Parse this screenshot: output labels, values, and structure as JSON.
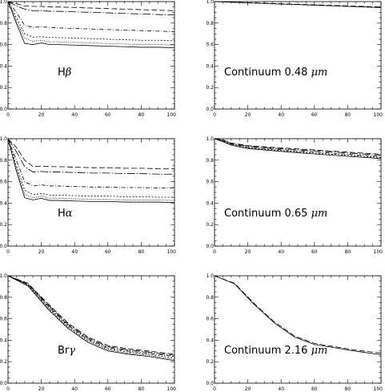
{
  "chart_data": [
    {
      "type": "line",
      "panel": "top-left",
      "label": "Hβ",
      "label_main": "H",
      "label_greek": "β",
      "x": [
        0,
        5,
        10,
        15,
        20,
        25,
        30,
        40,
        50,
        60,
        70,
        80,
        90,
        100
      ],
      "xlim": [
        0,
        100
      ],
      "ylim": [
        0.0,
        1.0
      ],
      "xticks": [
        "0",
        "20",
        "40",
        "60",
        "80",
        "100"
      ],
      "yticks": [
        "0.0",
        "0.2",
        "0.4",
        "0.6",
        "0.8",
        "1.0"
      ],
      "series": [
        {
          "dash": "7,3",
          "values": [
            1.0,
            0.98,
            0.96,
            0.955,
            0.955,
            0.95,
            0.95,
            0.945,
            0.94,
            0.935,
            0.93,
            0.925,
            0.92,
            0.915
          ]
        },
        {
          "dash": "10,2,1.5,2",
          "values": [
            1.0,
            0.96,
            0.93,
            0.915,
            0.915,
            0.91,
            0.91,
            0.905,
            0.9,
            0.895,
            0.89,
            0.885,
            0.88,
            0.875
          ]
        },
        {
          "dash": "5,2,1,2",
          "values": [
            1.0,
            0.9,
            0.78,
            0.76,
            0.765,
            0.76,
            0.755,
            0.75,
            0.745,
            0.74,
            0.735,
            0.73,
            0.725,
            0.72
          ]
        },
        {
          "dash": "2,2",
          "values": [
            1.0,
            0.85,
            0.7,
            0.67,
            0.675,
            0.665,
            0.665,
            0.66,
            0.655,
            0.65,
            0.645,
            0.64,
            0.64,
            0.635
          ]
        },
        {
          "dash": "1,1.5",
          "values": [
            1.0,
            0.82,
            0.66,
            0.63,
            0.64,
            0.625,
            0.625,
            0.62,
            0.615,
            0.61,
            0.605,
            0.6,
            0.6,
            0.595
          ]
        },
        {
          "dash": "",
          "values": [
            1.0,
            0.8,
            0.61,
            0.6,
            0.615,
            0.6,
            0.6,
            0.595,
            0.59,
            0.585,
            0.58,
            0.575,
            0.575,
            0.57
          ]
        }
      ]
    },
    {
      "type": "line",
      "panel": "top-right",
      "label": "Continuum 0.48 μm",
      "label_main": "Continuum 0.48 ",
      "label_greek": "μm",
      "x": [
        0,
        10,
        20,
        30,
        40,
        50,
        60,
        70,
        80,
        90,
        100
      ],
      "xlim": [
        0,
        100
      ],
      "ylim": [
        0.0,
        1.0
      ],
      "xticks": [
        "0",
        "20",
        "40",
        "60",
        "80",
        "100"
      ],
      "yticks": [
        "0.0",
        "0.2",
        "0.4",
        "0.6",
        "0.8",
        "1.0"
      ],
      "series": [
        {
          "dash": "7,3",
          "values": [
            1.0,
            0.995,
            0.99,
            0.985,
            0.98,
            0.975,
            0.97,
            0.965,
            0.96,
            0.955,
            0.95
          ]
        },
        {
          "dash": "",
          "values": [
            1.0,
            0.994,
            0.988,
            0.982,
            0.977,
            0.972,
            0.967,
            0.961,
            0.955,
            0.95,
            0.944
          ]
        }
      ]
    },
    {
      "type": "line",
      "panel": "middle-left",
      "label": "Hα",
      "label_main": "H",
      "label_greek": "α",
      "x": [
        0,
        5,
        10,
        15,
        20,
        25,
        30,
        40,
        50,
        60,
        70,
        80,
        90,
        100
      ],
      "xlim": [
        0,
        100
      ],
      "ylim": [
        0.0,
        1.0
      ],
      "xticks": [
        "0",
        "20",
        "40",
        "60",
        "80",
        "100"
      ],
      "yticks": [
        "0.0",
        "0.2",
        "0.4",
        "0.6",
        "0.8",
        "1.0"
      ],
      "series": [
        {
          "dash": "7,3",
          "values": [
            1.0,
            0.92,
            0.8,
            0.74,
            0.745,
            0.74,
            0.74,
            0.735,
            0.73,
            0.73,
            0.725,
            0.725,
            0.72,
            0.72
          ]
        },
        {
          "dash": "10,2,1.5,2",
          "values": [
            1.0,
            0.88,
            0.74,
            0.69,
            0.695,
            0.69,
            0.69,
            0.685,
            0.68,
            0.68,
            0.675,
            0.675,
            0.67,
            0.67
          ]
        },
        {
          "dash": "5,2,1,2",
          "values": [
            1.0,
            0.8,
            0.6,
            0.56,
            0.57,
            0.56,
            0.56,
            0.555,
            0.55,
            0.55,
            0.545,
            0.545,
            0.54,
            0.54
          ]
        },
        {
          "dash": "2,2",
          "values": [
            1.0,
            0.75,
            0.52,
            0.48,
            0.49,
            0.475,
            0.475,
            0.47,
            0.465,
            0.465,
            0.46,
            0.46,
            0.455,
            0.455
          ]
        },
        {
          "dash": "1,1.5",
          "values": [
            1.0,
            0.72,
            0.48,
            0.45,
            0.465,
            0.445,
            0.445,
            0.44,
            0.435,
            0.435,
            0.43,
            0.43,
            0.43,
            0.425
          ]
        },
        {
          "dash": "",
          "values": [
            1.0,
            0.7,
            0.45,
            0.43,
            0.445,
            0.425,
            0.425,
            0.42,
            0.415,
            0.415,
            0.41,
            0.41,
            0.41,
            0.405
          ]
        }
      ]
    },
    {
      "type": "line",
      "panel": "middle-right",
      "label": "Continuum 0.65 μm",
      "label_main": "Continuum 0.65 ",
      "label_greek": "μm",
      "x": [
        0,
        5,
        10,
        20,
        30,
        40,
        50,
        60,
        70,
        80,
        90,
        100
      ],
      "xlim": [
        0,
        100
      ],
      "ylim": [
        0.0,
        1.0
      ],
      "xticks": [
        "0",
        "20",
        "40",
        "60",
        "80",
        "100"
      ],
      "yticks": [
        "0.0",
        "0.2",
        "0.4",
        "0.6",
        "0.8",
        "1.0"
      ],
      "series": [
        {
          "dash": "7,3",
          "values": [
            1.0,
            0.99,
            0.96,
            0.935,
            0.925,
            0.915,
            0.905,
            0.895,
            0.885,
            0.875,
            0.865,
            0.855
          ]
        },
        {
          "dash": "10,2,1.5,2",
          "values": [
            1.0,
            0.985,
            0.955,
            0.93,
            0.918,
            0.907,
            0.897,
            0.887,
            0.877,
            0.867,
            0.857,
            0.847
          ]
        },
        {
          "dash": "5,2,1,2",
          "values": [
            1.0,
            0.98,
            0.95,
            0.922,
            0.91,
            0.898,
            0.887,
            0.876,
            0.866,
            0.855,
            0.845,
            0.835
          ]
        },
        {
          "dash": "2,2",
          "values": [
            1.0,
            0.975,
            0.945,
            0.915,
            0.902,
            0.89,
            0.878,
            0.867,
            0.856,
            0.845,
            0.835,
            0.825
          ]
        },
        {
          "dash": "",
          "values": [
            1.0,
            0.972,
            0.94,
            0.908,
            0.895,
            0.882,
            0.87,
            0.858,
            0.847,
            0.836,
            0.826,
            0.815
          ]
        }
      ]
    },
    {
      "type": "line",
      "panel": "bottom-left",
      "label": "Brγ",
      "label_main": "Br",
      "label_greek": "γ",
      "x": [
        0,
        12,
        24,
        36,
        48,
        60,
        72,
        84,
        100
      ],
      "xlim": [
        0,
        100
      ],
      "ylim": [
        0.0,
        1.0
      ],
      "xticks": [
        "0",
        "20",
        "40",
        "60",
        "80",
        "100"
      ],
      "yticks": [
        "0.0",
        "0.2",
        "0.4",
        "0.6",
        "0.8",
        "1.0"
      ],
      "series": [
        {
          "dash": "7,3",
          "values": [
            1.0,
            0.93,
            0.74,
            0.56,
            0.43,
            0.35,
            0.32,
            0.3,
            0.27
          ]
        },
        {
          "dash": "10,2,1.5,2",
          "values": [
            1.0,
            0.925,
            0.73,
            0.55,
            0.42,
            0.34,
            0.31,
            0.29,
            0.26
          ]
        },
        {
          "dash": "5,2,1,2",
          "values": [
            1.0,
            0.92,
            0.72,
            0.54,
            0.41,
            0.33,
            0.3,
            0.28,
            0.25
          ]
        },
        {
          "dash": "2,2",
          "values": [
            1.0,
            0.915,
            0.71,
            0.53,
            0.4,
            0.32,
            0.29,
            0.27,
            0.235
          ]
        },
        {
          "dash": "1,1.5",
          "values": [
            1.0,
            0.91,
            0.7,
            0.52,
            0.39,
            0.31,
            0.28,
            0.26,
            0.22
          ]
        },
        {
          "dash": "",
          "values": [
            1.0,
            0.905,
            0.69,
            0.51,
            0.38,
            0.3,
            0.27,
            0.25,
            0.21
          ]
        }
      ]
    },
    {
      "type": "line",
      "panel": "bottom-right",
      "label": "Continuum 2.16 μm",
      "label_main": "Continuum 2.16 ",
      "label_greek": "μm",
      "x": [
        0,
        12,
        24,
        36,
        48,
        60,
        72,
        84,
        100
      ],
      "xlim": [
        0,
        100
      ],
      "ylim": [
        0.0,
        1.0
      ],
      "xticks": [
        "0",
        "20",
        "40",
        "60",
        "80",
        "100"
      ],
      "yticks": [
        "0.0",
        "0.2",
        "0.4",
        "0.6",
        "0.8",
        "1.0"
      ],
      "series": [
        {
          "dash": "7,3",
          "values": [
            1.0,
            0.93,
            0.74,
            0.57,
            0.44,
            0.37,
            0.34,
            0.31,
            0.28
          ]
        },
        {
          "dash": "",
          "values": [
            1.0,
            0.925,
            0.73,
            0.56,
            0.43,
            0.36,
            0.33,
            0.3,
            0.265
          ]
        }
      ]
    }
  ]
}
